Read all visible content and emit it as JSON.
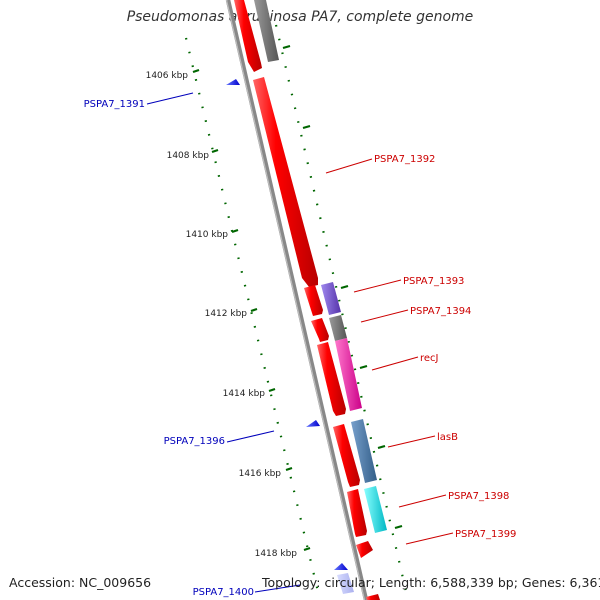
{
  "title": "Pseudomonas aeruginosa PA7, complete genome",
  "footer": {
    "accession": "Accession: NC_009656",
    "topology": "Topology: circular; Length: 6,588,339 bp; Genes: 6,361"
  },
  "ticks": [
    "1406 kbp",
    "1408 kbp",
    "1410 kbp",
    "1412 kbp",
    "1414 kbp",
    "1416 kbp",
    "1418 kbp"
  ],
  "colors": {
    "backbone": "#888888",
    "cds": "#ff0000",
    "label_forward": "#cc0000",
    "label_reverse": "#0000bb",
    "tick": "#006600",
    "other_feature": "#707070",
    "purple_feature": "#7755cc",
    "magenta_feature": "#ff22aa",
    "steel_feature": "#4477aa",
    "cyan_feature": "#00dddd"
  },
  "genes": [
    {
      "id": "PSPA7_1391",
      "strand": "reverse"
    },
    {
      "id": "PSPA7_1392",
      "strand": "forward"
    },
    {
      "id": "PSPA7_1393",
      "strand": "forward"
    },
    {
      "id": "PSPA7_1394",
      "strand": "forward"
    },
    {
      "id": "recJ",
      "strand": "forward"
    },
    {
      "id": "PSPA7_1396",
      "strand": "reverse"
    },
    {
      "id": "lasB",
      "strand": "forward"
    },
    {
      "id": "PSPA7_1398",
      "strand": "forward"
    },
    {
      "id": "PSPA7_1399",
      "strand": "forward"
    },
    {
      "id": "PSPA7_1400",
      "strand": "reverse"
    }
  ]
}
